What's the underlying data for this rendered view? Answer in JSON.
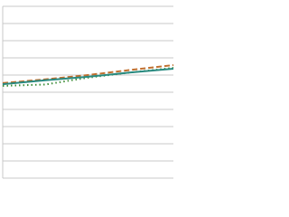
{
  "chart_data": {
    "type": "line",
    "categories": [
      null,
      null,
      null,
      null,
      null
    ],
    "series": [
      {
        "color": "#c07030",
        "dash": "6,3",
        "values": [
          55.3,
          57.5,
          60,
          63,
          65.8
        ]
      },
      {
        "color": "#3f8f3a",
        "dash": "1.5,3",
        "values": [
          53.7,
          54.5,
          58.5,
          61.5,
          64.2
        ]
      },
      {
        "color": "#2a8a80",
        "dash": "none",
        "values": [
          54.7,
          57,
          59,
          61.5,
          63.7
        ]
      }
    ],
    "ylim": [
      0,
      100
    ],
    "yticks": [
      0,
      10,
      20,
      30,
      40,
      50,
      60,
      70,
      80,
      90,
      100
    ],
    "grid": true
  }
}
